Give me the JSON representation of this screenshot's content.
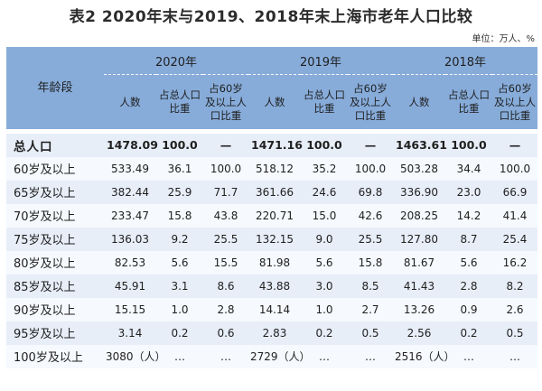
{
  "title": "表2  2020年末与2019、2018年末上海市老年人口比较",
  "unit": "单位：万人、%",
  "header": {
    "age_label": "年龄段",
    "years": [
      "2020年",
      "2019年",
      "2018年"
    ],
    "sub_headers": [
      "人数",
      "占总人口比重",
      "占60岁及以上人口比重"
    ]
  },
  "rows": [
    {
      "label": "总人口",
      "values": [
        "1478.09",
        "100.0",
        "—",
        "1471.16",
        "100.0",
        "—",
        "1463.61",
        "100.0",
        "—"
      ]
    },
    {
      "label": "60岁及以上",
      "values": [
        "533.49",
        "36.1",
        "100.0",
        "518.12",
        "35.2",
        "100.0",
        "503.28",
        "34.4",
        "100.0"
      ]
    },
    {
      "label": "65岁及以上",
      "values": [
        "382.44",
        "25.9",
        "71.7",
        "361.66",
        "24.6",
        "69.8",
        "336.90",
        "23.0",
        "66.9"
      ]
    },
    {
      "label": "70岁及以上",
      "values": [
        "233.47",
        "15.8",
        "43.8",
        "220.71",
        "15.0",
        "42.6",
        "208.25",
        "14.2",
        "41.4"
      ]
    },
    {
      "label": "75岁及以上",
      "values": [
        "136.03",
        "9.2",
        "25.5",
        "132.15",
        "9.0",
        "25.5",
        "127.80",
        "8.7",
        "25.4"
      ]
    },
    {
      "label": "80岁及以上",
      "values": [
        "82.53",
        "5.6",
        "15.5",
        "81.98",
        "5.6",
        "15.8",
        "81.67",
        "5.6",
        "16.2"
      ]
    },
    {
      "label": "85岁及以上",
      "values": [
        "45.91",
        "3.1",
        "8.6",
        "43.88",
        "3.0",
        "8.5",
        "41.43",
        "2.8",
        "8.2"
      ]
    },
    {
      "label": "90岁及以上",
      "values": [
        "15.15",
        "1.0",
        "2.8",
        "14.14",
        "1.0",
        "2.7",
        "13.26",
        "0.9",
        "2.6"
      ]
    },
    {
      "label": "95岁及以上",
      "values": [
        "3.14",
        "0.2",
        "0.6",
        "2.83",
        "0.2",
        "0.5",
        "2.56",
        "0.2",
        "0.5"
      ]
    },
    {
      "label": "100岁及以上",
      "values": [
        "3080（人）",
        "…",
        "…",
        "2729（人）",
        "…",
        "…",
        "2516（人）",
        "…",
        "…"
      ]
    }
  ]
}
